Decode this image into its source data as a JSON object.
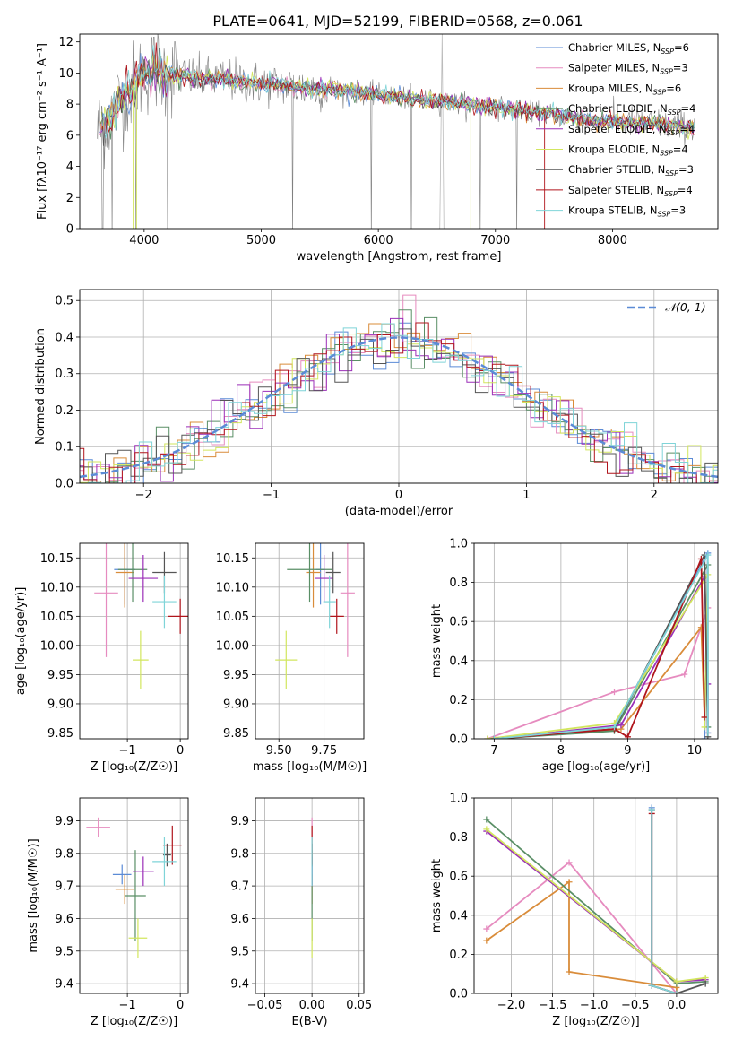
{
  "figure_title": "PLATE=0641, MJD=52199, FIBERID=0568, z=0.061",
  "palette": {
    "c0": "#5b8bd6",
    "c1": "#e68bbf",
    "c2": "#d98c3a",
    "c3": "#5a8f66",
    "c4": "#9b2fb8",
    "c5": "#d2e65e",
    "c6": "#555555",
    "c7": "#b0151c",
    "c8": "#7fd4d8",
    "gauss": "#5b8bd6"
  },
  "legend_labels": [
    "Chabrier MILES, N",
    "Salpeter MILES, N",
    "Kroupa MILES, N",
    "Chabrier ELODIE, N",
    "Salpeter ELODIE, N",
    "Kroupa ELODIE, N",
    "Chabrier STELIB, N",
    "Salpeter STELIB, N",
    "Kroupa STELIB, N"
  ],
  "legend_subscript": "SSP",
  "legend_counts": [
    "=6",
    "=3",
    "=6",
    "=4",
    "=4",
    "=4",
    "=3",
    "=4",
    "=3"
  ],
  "hist_legend": "𝒩(0, 1)",
  "chart_data": [
    {
      "id": "spectrum",
      "type": "line",
      "xlabel": "wavelength [Angstrom, rest frame]",
      "ylabel": "Flux [fλ10⁻¹⁷ erg cm⁻² s⁻¹ A⁻¹]",
      "xlim": [
        3450,
        8900
      ],
      "ylim": [
        0,
        12.5
      ],
      "xticks": [
        4000,
        5000,
        6000,
        7000,
        8000
      ],
      "yticks": [
        0,
        2,
        4,
        6,
        8,
        10,
        12
      ],
      "continuum": {
        "x": [
          3600,
          3700,
          3800,
          3900,
          4000,
          4100,
          4200,
          4400,
          4600,
          4800,
          5000,
          5200,
          5400,
          5600,
          5800,
          6000,
          6200,
          6400,
          6600,
          6800,
          7000,
          7200,
          7400,
          7600,
          7800,
          8000,
          8200,
          8400,
          8600,
          8700
        ],
        "y": [
          6.2,
          7.0,
          8.4,
          9.2,
          10.0,
          10.3,
          10.0,
          9.7,
          9.6,
          9.5,
          9.3,
          9.2,
          9.0,
          9.0,
          8.8,
          8.6,
          8.4,
          8.3,
          8.1,
          8.0,
          7.8,
          7.6,
          7.4,
          7.2,
          7.0,
          6.9,
          6.8,
          6.7,
          6.6,
          6.5
        ]
      }
    },
    {
      "id": "residual-histogram",
      "type": "histogram",
      "xlabel": "(data-model)/error",
      "ylabel": "Normed distribution",
      "xlim": [
        -2.5,
        2.5
      ],
      "ylim": [
        0,
        0.53
      ],
      "xticks": [
        -2,
        -1,
        0,
        1,
        2
      ],
      "yticks": [
        0.0,
        0.1,
        0.2,
        0.3,
        0.4,
        0.5
      ],
      "bin_width": 0.1
    },
    {
      "id": "age-vs-z",
      "type": "scatter",
      "xlabel": "Z [log₁₀(Z/Z☉)]",
      "ylabel": "age  [log₁₀(age/yr)]",
      "xlim": [
        -1.9,
        0.15
      ],
      "ylim": [
        9.84,
        10.175
      ],
      "xticks": [
        -1,
        0
      ],
      "yticks": [
        9.85,
        9.9,
        9.95,
        10.0,
        10.05,
        10.1,
        10.15
      ],
      "points": [
        {
          "x": -1.05,
          "y": 10.13,
          "ex": 0.4,
          "ey": 0.12,
          "c": "c0"
        },
        {
          "x": -1.4,
          "y": 10.09,
          "ex": 0.45,
          "ey": 0.22,
          "c": "c1"
        },
        {
          "x": -1.05,
          "y": 10.125,
          "ex": 0.35,
          "ey": 0.12,
          "c": "c2"
        },
        {
          "x": -0.9,
          "y": 10.13,
          "ex": 0.55,
          "ey": 0.11,
          "c": "c3"
        },
        {
          "x": -0.7,
          "y": 10.115,
          "ex": 0.55,
          "ey": 0.08,
          "c": "c4"
        },
        {
          "x": -0.75,
          "y": 9.975,
          "ex": 0.3,
          "ey": 0.1,
          "c": "c5"
        },
        {
          "x": -0.3,
          "y": 10.125,
          "ex": 0.45,
          "ey": 0.07,
          "c": "c6"
        },
        {
          "x": 0.0,
          "y": 10.05,
          "ex": 0.45,
          "ey": 0.06,
          "c": "c7"
        },
        {
          "x": -0.3,
          "y": 10.075,
          "ex": 0.45,
          "ey": 0.09,
          "c": "c8"
        }
      ]
    },
    {
      "id": "age-vs-mass",
      "type": "scatter",
      "xlabel": "mass [log₁₀(M/M☉)]",
      "ylabel": "",
      "xlim": [
        9.37,
        9.97
      ],
      "ylim": [
        9.84,
        10.175
      ],
      "xticks": [
        9.5,
        9.75
      ],
      "yticks": [
        9.85,
        9.9,
        9.95,
        10.0,
        10.05,
        10.1,
        10.15
      ],
      "points": [
        {
          "x": 9.73,
          "y": 10.13,
          "ex": 0.05,
          "ey": 0.12,
          "c": "c0"
        },
        {
          "x": 9.88,
          "y": 10.09,
          "ex": 0.08,
          "ey": 0.22,
          "c": "c1"
        },
        {
          "x": 9.69,
          "y": 10.125,
          "ex": 0.08,
          "ey": 0.12,
          "c": "c2"
        },
        {
          "x": 9.67,
          "y": 10.13,
          "ex": 0.25,
          "ey": 0.11,
          "c": "c3"
        },
        {
          "x": 9.75,
          "y": 10.115,
          "ex": 0.1,
          "ey": 0.08,
          "c": "c4"
        },
        {
          "x": 9.54,
          "y": 9.975,
          "ex": 0.12,
          "ey": 0.1,
          "c": "c5"
        },
        {
          "x": 9.8,
          "y": 10.125,
          "ex": 0.08,
          "ey": 0.07,
          "c": "c6"
        },
        {
          "x": 9.82,
          "y": 10.05,
          "ex": 0.08,
          "ey": 0.06,
          "c": "c7"
        },
        {
          "x": 9.78,
          "y": 10.075,
          "ex": 0.07,
          "ey": 0.09,
          "c": "c8"
        }
      ]
    },
    {
      "id": "mass-weight-vs-age",
      "type": "line",
      "xlabel": "age  [log₁₀(age/yr)]",
      "ylabel": "mass weight",
      "xlim": [
        6.7,
        10.35
      ],
      "ylim": [
        0,
        1.0
      ],
      "xticks": [
        7,
        8,
        9,
        10
      ],
      "yticks": [
        0.0,
        0.2,
        0.4,
        0.6,
        0.8,
        1.0
      ],
      "series": [
        {
          "c": "c0",
          "x": [
            7.0,
            8.8,
            10.2,
            10.15
          ],
          "y": [
            0.0,
            0.05,
            0.95,
            0.0
          ]
        },
        {
          "c": "c1",
          "x": [
            6.9,
            8.8,
            9.85,
            10.2
          ],
          "y": [
            0.0,
            0.24,
            0.33,
            0.67
          ]
        },
        {
          "c": "c2",
          "x": [
            7.0,
            8.9,
            10.1,
            10.15
          ],
          "y": [
            0.0,
            0.05,
            0.57,
            0.11
          ]
        },
        {
          "c": "c3",
          "x": [
            7.0,
            8.8,
            10.2,
            10.2
          ],
          "y": [
            0.0,
            0.04,
            0.89,
            0.06
          ]
        },
        {
          "c": "c4",
          "x": [
            7.0,
            8.9,
            10.15,
            10.2,
            10.2
          ],
          "y": [
            0.0,
            0.07,
            0.83,
            0.28,
            0.03
          ]
        },
        {
          "c": "c5",
          "x": [
            6.9,
            8.8,
            10.2,
            10.15
          ],
          "y": [
            0.0,
            0.08,
            0.84,
            0.06
          ]
        },
        {
          "c": "c6",
          "x": [
            7.0,
            8.8,
            10.15,
            10.2
          ],
          "y": [
            0.0,
            0.05,
            0.94,
            0.01
          ]
        },
        {
          "c": "c7",
          "x": [
            7.0,
            8.8,
            9.0,
            10.1,
            10.15
          ],
          "y": [
            0.0,
            0.05,
            0.01,
            0.92,
            0.11
          ]
        },
        {
          "c": "c8",
          "x": [
            7.0,
            8.8,
            10.2,
            10.2
          ],
          "y": [
            0.0,
            0.06,
            0.94,
            0.03
          ]
        }
      ]
    },
    {
      "id": "mass-vs-z",
      "type": "scatter",
      "xlabel": "Z [log₁₀(Z/Z☉)]",
      "ylabel": "mass [log₁₀(M/M☉)]",
      "xlim": [
        -1.9,
        0.15
      ],
      "ylim": [
        9.37,
        9.97
      ],
      "xticks": [
        -1,
        0
      ],
      "yticks": [
        9.4,
        9.5,
        9.6,
        9.7,
        9.8,
        9.9
      ],
      "points": [
        {
          "x": -1.1,
          "y": 9.735,
          "ex": 0.35,
          "ey": 0.06,
          "c": "c0"
        },
        {
          "x": -1.55,
          "y": 9.88,
          "ex": 0.45,
          "ey": 0.06,
          "c": "c1"
        },
        {
          "x": -1.05,
          "y": 9.69,
          "ex": 0.35,
          "ey": 0.09,
          "c": "c2"
        },
        {
          "x": -0.85,
          "y": 9.67,
          "ex": 0.4,
          "ey": 0.28,
          "c": "c3"
        },
        {
          "x": -0.7,
          "y": 9.745,
          "ex": 0.4,
          "ey": 0.09,
          "c": "c4"
        },
        {
          "x": -0.8,
          "y": 9.54,
          "ex": 0.35,
          "ey": 0.12,
          "c": "c5"
        },
        {
          "x": -0.25,
          "y": 9.795,
          "ex": 0.15,
          "ey": 0.07,
          "c": "c6"
        },
        {
          "x": -0.15,
          "y": 9.825,
          "ex": 0.35,
          "ey": 0.12,
          "c": "c7"
        },
        {
          "x": -0.3,
          "y": 9.775,
          "ex": 0.45,
          "ey": 0.15,
          "c": "c8"
        }
      ]
    },
    {
      "id": "mass-vs-ebv",
      "type": "scatter",
      "xlabel": "E(B-V)",
      "ylabel": "",
      "xlim": [
        -0.06,
        0.055
      ],
      "ylim": [
        9.37,
        9.97
      ],
      "xticks": [
        -0.05,
        0.0,
        0.05
      ],
      "yticks": [
        9.4,
        9.5,
        9.6,
        9.7,
        9.8,
        9.9
      ],
      "points": [
        {
          "x": 0.0,
          "y": 9.735,
          "ex": 0,
          "ey": 0.06,
          "c": "c0"
        },
        {
          "x": 0.0,
          "y": 9.88,
          "ex": 0,
          "ey": 0.06,
          "c": "c1"
        },
        {
          "x": 0.0,
          "y": 9.69,
          "ex": 0,
          "ey": 0.09,
          "c": "c2"
        },
        {
          "x": 0.0,
          "y": 9.67,
          "ex": 0,
          "ey": 0.28,
          "c": "c3"
        },
        {
          "x": 0.0,
          "y": 9.745,
          "ex": 0,
          "ey": 0.09,
          "c": "c4"
        },
        {
          "x": 0.0,
          "y": 9.54,
          "ex": 0,
          "ey": 0.12,
          "c": "c5"
        },
        {
          "x": 0.0,
          "y": 9.795,
          "ex": 0,
          "ey": 0.07,
          "c": "c6"
        },
        {
          "x": 0.0,
          "y": 9.825,
          "ex": 0,
          "ey": 0.12,
          "c": "c7"
        },
        {
          "x": 0.0,
          "y": 9.775,
          "ex": 0,
          "ey": 0.15,
          "c": "c8"
        }
      ]
    },
    {
      "id": "mass-weight-vs-z",
      "type": "line",
      "xlabel": "Z [log₁₀(Z/Z☉)]",
      "ylabel": "mass weight",
      "xlim": [
        -2.45,
        0.5
      ],
      "ylim": [
        0,
        1.0
      ],
      "xticks": [
        -2.0,
        -1.5,
        -1.0,
        -0.5,
        0.0
      ],
      "yticks": [
        0.0,
        0.2,
        0.4,
        0.6,
        0.8,
        1.0
      ],
      "series": [
        {
          "c": "c0",
          "x": [
            -0.3,
            -0.3,
            0.0
          ],
          "y": [
            0.95,
            0.04,
            0.0
          ]
        },
        {
          "c": "c1",
          "x": [
            -2.3,
            -1.3,
            0.0
          ],
          "y": [
            0.33,
            0.67,
            0.0
          ]
        },
        {
          "c": "c2",
          "x": [
            -2.3,
            -1.3,
            -1.3,
            0.0,
            0.0
          ],
          "y": [
            0.27,
            0.57,
            0.11,
            0.03,
            0.0
          ]
        },
        {
          "c": "c3",
          "x": [
            -2.3,
            0.0,
            0.35
          ],
          "y": [
            0.89,
            0.05,
            0.06
          ]
        },
        {
          "c": "c4",
          "x": [
            -2.3,
            0.0,
            0.35
          ],
          "y": [
            0.83,
            0.06,
            0.07
          ]
        },
        {
          "c": "c5",
          "x": [
            -2.3,
            0.0,
            0.35
          ],
          "y": [
            0.84,
            0.06,
            0.08
          ]
        },
        {
          "c": "c6",
          "x": [
            -0.3,
            -0.3,
            0.0,
            0.35
          ],
          "y": [
            0.94,
            0.04,
            0.0,
            0.05
          ]
        },
        {
          "c": "c7",
          "x": [
            -0.3,
            -0.3,
            0.0
          ],
          "y": [
            0.92,
            0.04,
            0.0
          ]
        },
        {
          "c": "c8",
          "x": [
            -0.3,
            -0.3,
            0.0
          ],
          "y": [
            0.94,
            0.04,
            0.0
          ]
        }
      ]
    }
  ]
}
